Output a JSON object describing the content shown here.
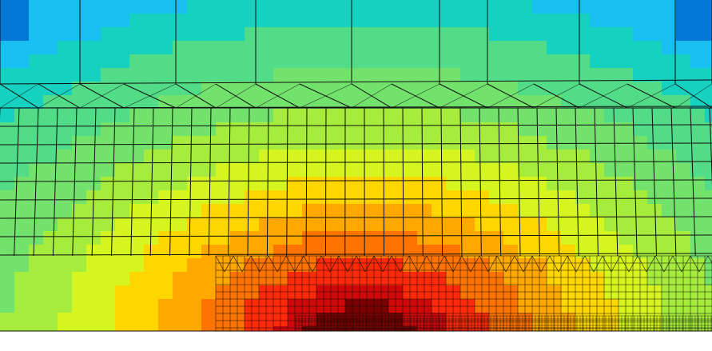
{
  "view": {
    "background": "#ffffff",
    "mesh_line_color": "#0d0d0d"
  },
  "contour": {
    "levels": 12,
    "palette": [
      "#0277d6",
      "#19bff0",
      "#16d0c0",
      "#52dc88",
      "#72e26c",
      "#a6ec3c",
      "#d4f51f",
      "#ffd700",
      "#ffa800",
      "#ff7400",
      "#ff2a0a",
      "#d0080a",
      "#7a0000"
    ]
  }
}
